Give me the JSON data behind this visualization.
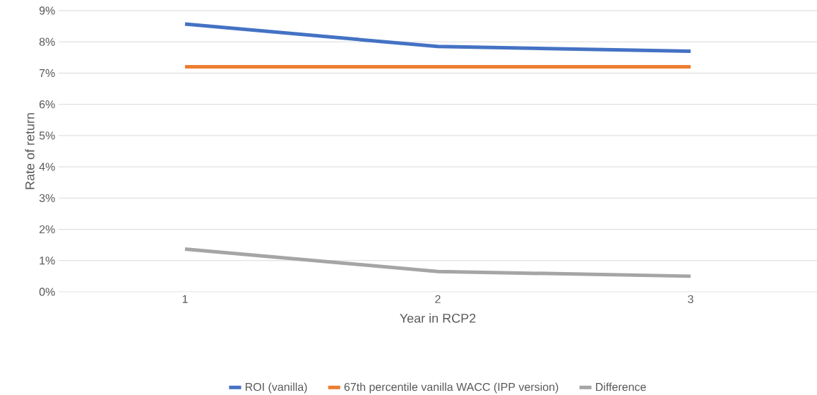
{
  "chart_data": {
    "type": "line",
    "xlabel": "Year in RCP2",
    "ylabel": "Rate of return",
    "categories": [
      "1",
      "2",
      "3"
    ],
    "series": [
      {
        "name": "ROI (vanilla)",
        "color": "#4472c4",
        "values": [
          8.57,
          7.85,
          7.7
        ]
      },
      {
        "name": "67th percentile vanilla WACC (IPP version)",
        "color": "#ed7d31",
        "values": [
          7.2,
          7.2,
          7.2
        ]
      },
      {
        "name": "Difference",
        "color": "#a5a5a5",
        "values": [
          1.37,
          0.65,
          0.5
        ]
      }
    ],
    "ylim": [
      0,
      9
    ],
    "yticks": [
      {
        "value": 0,
        "label": "0%"
      },
      {
        "value": 1,
        "label": "1%"
      },
      {
        "value": 2,
        "label": "2%"
      },
      {
        "value": 3,
        "label": "3%"
      },
      {
        "value": 4,
        "label": "4%"
      },
      {
        "value": 5,
        "label": "5%"
      },
      {
        "value": 6,
        "label": "6%"
      },
      {
        "value": 7,
        "label": "7%"
      },
      {
        "value": 8,
        "label": "8%"
      },
      {
        "value": 9,
        "label": "9%"
      }
    ],
    "grid": "y",
    "legend": "bottom",
    "line_style": "solid",
    "marker": "none"
  }
}
